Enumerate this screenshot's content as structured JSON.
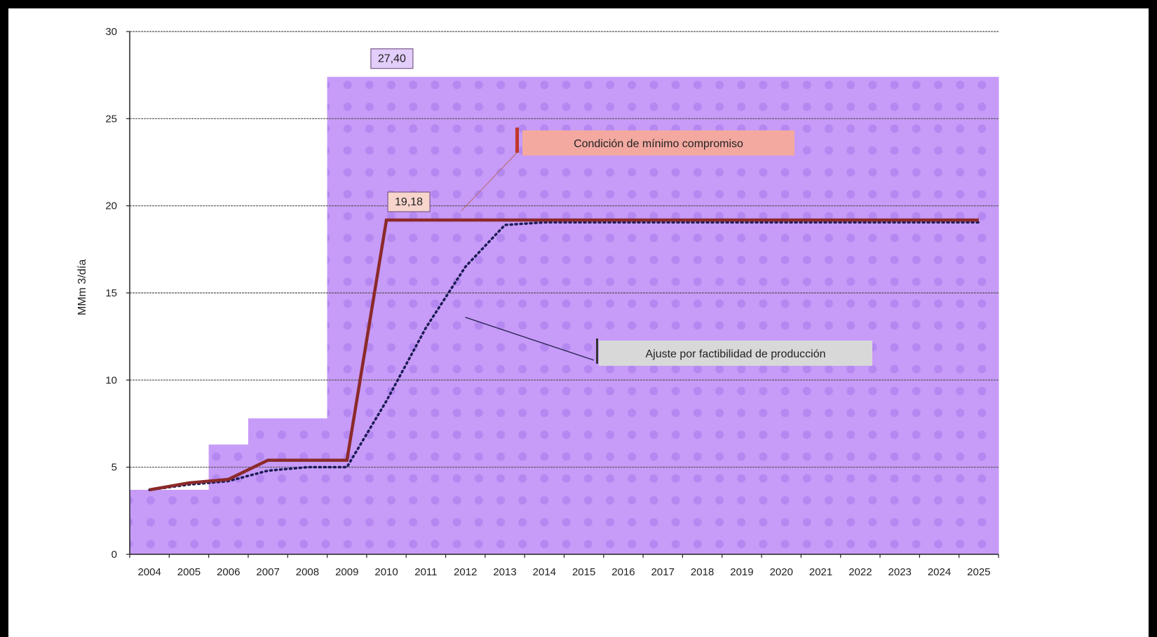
{
  "colors": {
    "band_fill": "#c79bf8",
    "band_dot": "#b488f0",
    "commitment_line": "#8b2a2a",
    "adjustment_line": "#1c1c55",
    "grid": "#555555",
    "axis": "#222222"
  },
  "chart_data": {
    "type": "line",
    "title": "",
    "xlabel": "",
    "ylabel": "MMm 3/día",
    "ylim": [
      0,
      30
    ],
    "yticks": [
      "0",
      "5",
      "10",
      "15",
      "20",
      "25",
      "30"
    ],
    "grid": "horizontal",
    "categories": [
      "2004",
      "2005",
      "2006",
      "2007",
      "2008",
      "2009",
      "2010",
      "2011",
      "2012",
      "2013",
      "2014",
      "2015",
      "2016",
      "2017",
      "2018",
      "2019",
      "2020",
      "2021",
      "2022",
      "2023",
      "2024",
      "2025"
    ],
    "series": [
      {
        "style": "solid",
        "values": [
          3.7,
          4.1,
          4.3,
          5.4,
          5.4,
          5.4,
          19.18,
          19.18,
          19.18,
          19.18,
          19.18,
          19.18,
          19.18,
          19.18,
          19.18,
          19.18,
          19.18,
          19.18,
          19.18,
          19.18,
          19.18,
          19.18
        ]
      },
      {
        "style": "dotted",
        "values": [
          3.7,
          4.0,
          4.2,
          4.8,
          5.0,
          5.0,
          8.8,
          13.0,
          16.5,
          18.9,
          19.05,
          19.05,
          19.05,
          19.05,
          19.05,
          19.05,
          19.05,
          19.05,
          19.05,
          19.05,
          19.05,
          19.05
        ]
      }
    ],
    "band": {
      "style": "stepped-area",
      "values": [
        3.7,
        3.7,
        6.3,
        7.8,
        7.8,
        27.4,
        27.4,
        27.4,
        27.4,
        27.4,
        27.4,
        27.4,
        27.4,
        27.4,
        27.4,
        27.4,
        27.4,
        27.4,
        27.4,
        27.4,
        27.4,
        27.4
      ]
    },
    "value_labels": {
      "band_max": "27,40",
      "commitment_value": "19,18"
    },
    "annotations": {
      "commitment": "Condición de mínimo compromiso",
      "adjustment": "Ajuste por factibilidad de producción"
    }
  }
}
